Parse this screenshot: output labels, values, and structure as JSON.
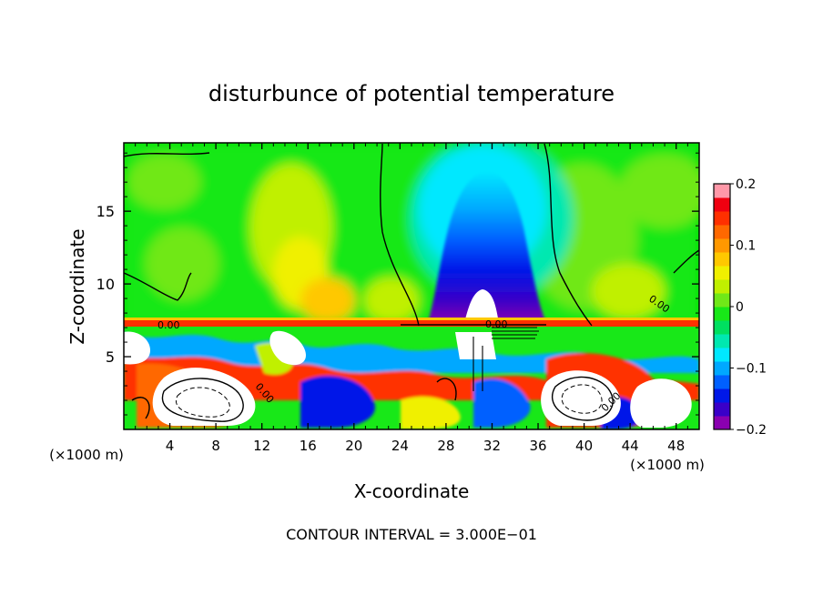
{
  "chart_data": {
    "type": "heatmap",
    "title": "disturbunce of potential temperature",
    "xlabel": "X-coordinate",
    "ylabel": "Z-coordinate",
    "x_unit_left": "(×1000 m)",
    "x_unit_right": "(×1000 m)",
    "xlim": [
      0,
      50
    ],
    "ylim": [
      0,
      19.7
    ],
    "xticks": [
      4,
      8,
      12,
      16,
      20,
      24,
      28,
      32,
      36,
      40,
      44,
      48
    ],
    "xtick_labels": [
      "4",
      "8",
      "12",
      "16",
      "20",
      "24",
      "28",
      "32",
      "36",
      "40",
      "44",
      "48"
    ],
    "yticks": [
      5,
      10,
      15
    ],
    "ytick_labels": [
      "5",
      "10",
      "15"
    ],
    "colorbar": {
      "range": [
        -0.2,
        0.2
      ],
      "ticks": [
        0.2,
        0.1,
        0,
        -0.1,
        -0.2
      ],
      "tick_labels": [
        "0.2",
        "0.1",
        "0",
        "−0.1",
        "−0.2"
      ],
      "colors": [
        "#8a00b0",
        "#3a00c8",
        "#0018e8",
        "#0060ff",
        "#00a8ff",
        "#00e8ff",
        "#00e8b0",
        "#00e060",
        "#18e818",
        "#70e818",
        "#c0f000",
        "#f0f000",
        "#ffc800",
        "#ff9800",
        "#ff6800",
        "#ff3000",
        "#f00010",
        "#ff98a8"
      ]
    },
    "contour_labels": [
      "0.00",
      "0.00",
      "0.00",
      "0.00",
      "0.00"
    ],
    "features": {
      "inversion_height": 7.2,
      "cold_plume_center_x": 30.5
    },
    "footer": "CONTOUR INTERVAL = 3.000E−01"
  }
}
